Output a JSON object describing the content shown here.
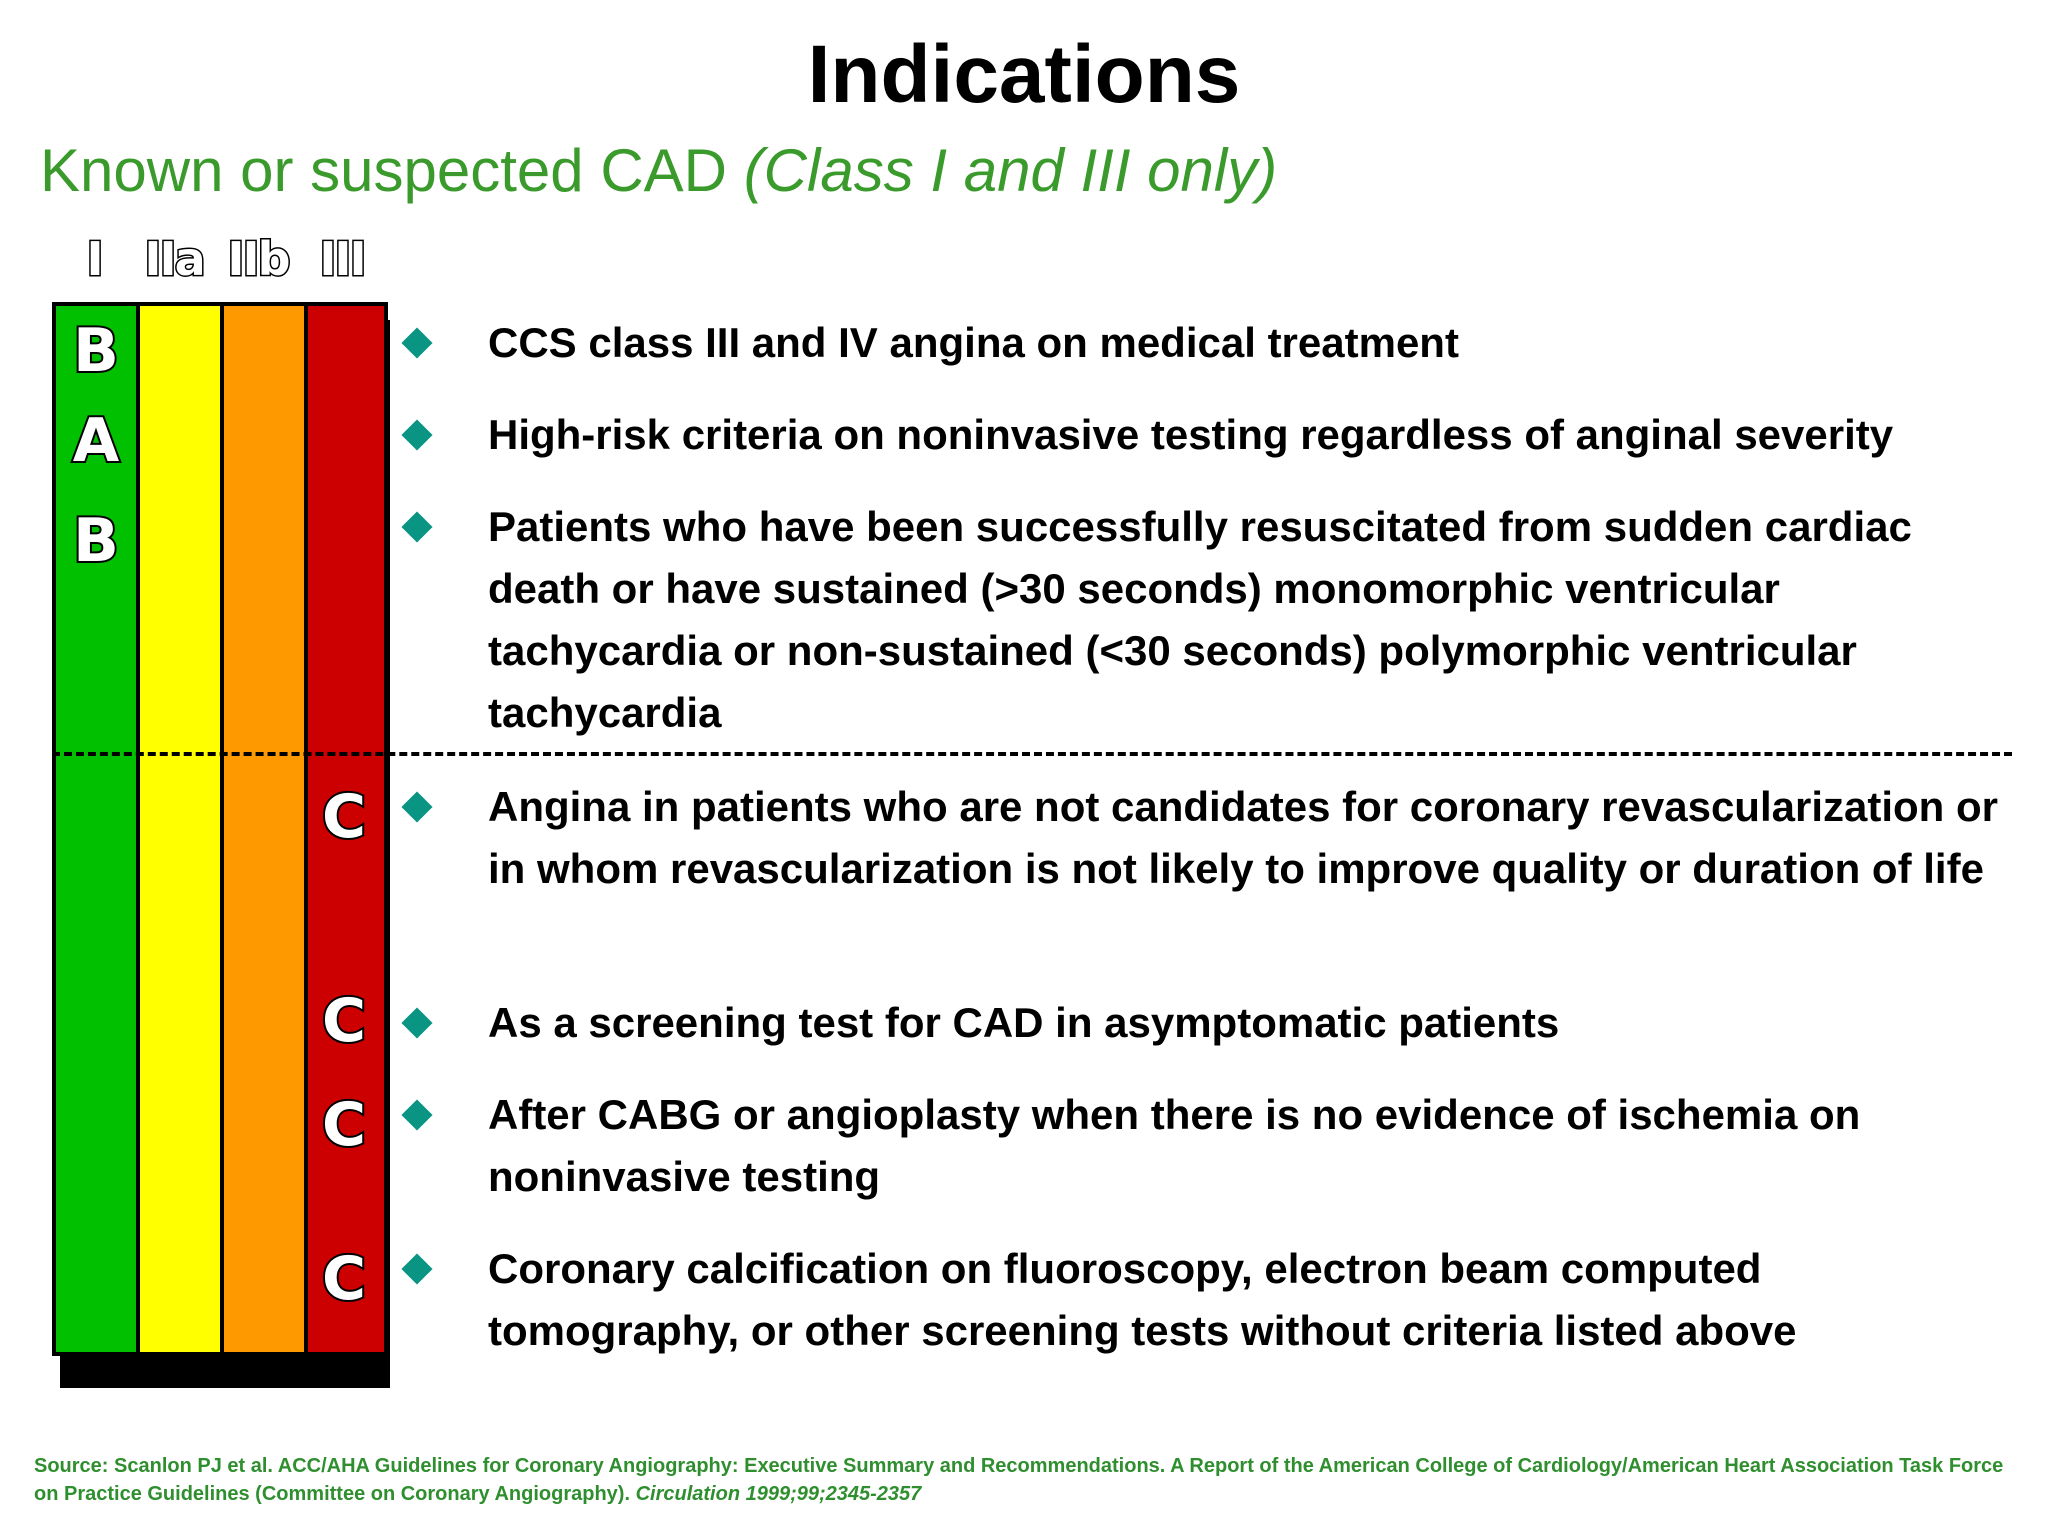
{
  "title": "Indications",
  "subtitle": {
    "main": "Known or suspected CAD",
    "qualifier": "(Class I and III only)"
  },
  "class_headers": [
    "I",
    "IIa",
    "IIb",
    "III"
  ],
  "columns": [
    {
      "class": "I",
      "color": "#00c000"
    },
    {
      "class": "IIa",
      "color": "#ffff00"
    },
    {
      "class": "IIb",
      "color": "#ff9900"
    },
    {
      "class": "III",
      "color": "#cc0000"
    }
  ],
  "bullet_color": "#0a9484",
  "class_i": {
    "items": [
      {
        "level": "B",
        "text": "CCS class III and IV angina on medical treatment"
      },
      {
        "level": "A",
        "text": "High-risk criteria on noninvasive testing regardless of anginal severity"
      },
      {
        "level": "B",
        "text": "Patients who have been successfully resuscitated from sudden cardiac death or have sustained (>30 seconds) monomorphic ventricular tachycardia or non-sustained (<30 seconds) polymorphic ventricular tachycardia"
      }
    ]
  },
  "class_iii": {
    "items": [
      {
        "level": "C",
        "text": "Angina in patients who are not candidates for coronary revascularization or in whom revascularization is not likely to improve quality or duration of life"
      },
      {
        "level": "C",
        "text": "As a screening test for CAD in asymptomatic patients"
      },
      {
        "level": "C",
        "text": "After CABG or angioplasty when there is no evidence of ischemia on noninvasive testing"
      },
      {
        "level": "C",
        "text": "Coronary calcification on fluoroscopy, electron beam computed tomography, or other screening tests without criteria listed above"
      }
    ]
  },
  "source": {
    "text": "Source: Scanlon PJ et al. ACC/AHA Guidelines for Coronary Angiography: Executive Summary and Recommendations. A Report of the American College of Cardiology/American Heart Association Task Force on Practice Guidelines (Committee on Coronary Angiography).",
    "journal": "Circulation 1999;99;2345-2357"
  }
}
